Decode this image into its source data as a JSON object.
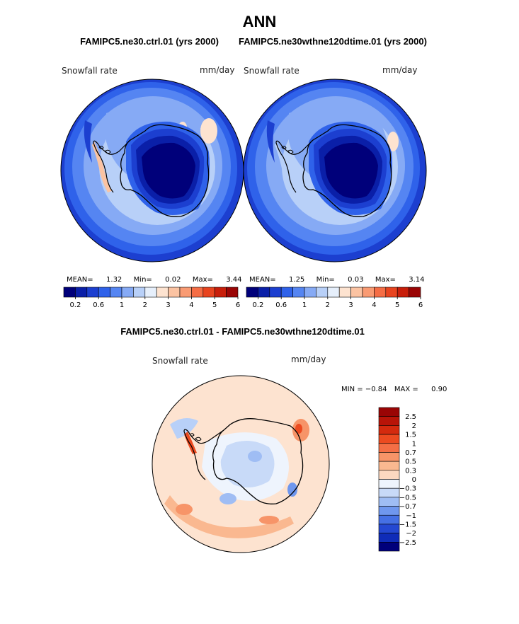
{
  "header": {
    "title": "ANN",
    "subtitle_left": "FAMIPC5.ne30.ctrl.01 (yrs 2000)",
    "subtitle_right": "FAMIPC5.ne30wthne120dtime.01 (yrs 2000)",
    "diff_title": "FAMIPC5.ne30.ctrl.01 - FAMIPC5.ne30wthne120dtime.01"
  },
  "panels": [
    {
      "variable": "Snowfall rate",
      "units": "mm/day",
      "mean_label": "MEAN=",
      "mean_value": "1.32",
      "min_label": "Min=",
      "min_value": "0.02",
      "max_label": "Max=",
      "max_value": "3.44"
    },
    {
      "variable": "Snowfall rate",
      "units": "mm/day",
      "mean_label": "MEAN=",
      "mean_value": "1.25",
      "min_label": "Min=",
      "min_value": "0.03",
      "max_label": "Max=",
      "max_value": "3.14"
    }
  ],
  "diff_panel": {
    "variable": "Snowfall rate",
    "units": "mm/day",
    "min_label": "MIN =",
    "min_value": "−0.84",
    "max_label": "MAX =",
    "max_value": "0.90"
  },
  "colorbar_abs": {
    "colors": [
      "#00007a",
      "#0a1fa8",
      "#1c3fd0",
      "#2f62ea",
      "#5585f2",
      "#86aaf5",
      "#b8d0f8",
      "#e6effb",
      "#fde3d0",
      "#fbc3a2",
      "#f99b73",
      "#f56d45",
      "#e8441f",
      "#c81e0a",
      "#9a0505"
    ],
    "tick_labels": [
      "0.2",
      "0.6",
      "1",
      "2",
      "3",
      "4",
      "5",
      "6"
    ]
  },
  "colorbar_diff": {
    "colors": [
      "#9a0505",
      "#b81408",
      "#d42a0e",
      "#ec4a20",
      "#f46e45",
      "#f79468",
      "#fab890",
      "#fcd8c0",
      "#eef4fd",
      "#c8daf8",
      "#9fbdf4",
      "#6f97ee",
      "#4570e4",
      "#2448d2",
      "#0f2cb8",
      "#00007a"
    ],
    "tick_labels": [
      "2.5",
      "2",
      "1.5",
      "1",
      "0.7",
      "0.5",
      "0.3",
      "0",
      "−0.3",
      "−0.5",
      "−0.7",
      "−1",
      "−1.5",
      "−2",
      "−2.5"
    ]
  },
  "colors": {
    "coastline": "#000000",
    "background": "#ffffff"
  }
}
